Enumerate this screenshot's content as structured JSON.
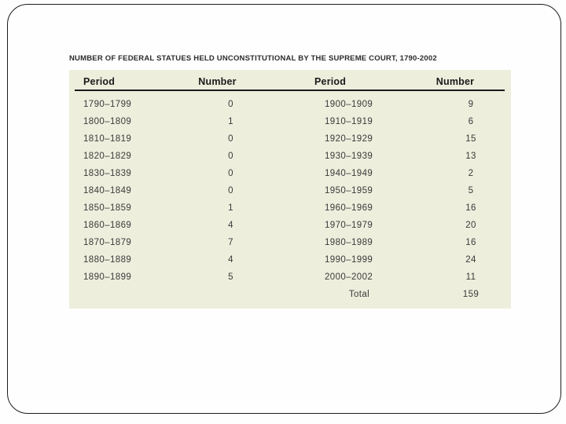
{
  "slide": {
    "background_color": "#fefefe",
    "border_color": "#1c1c1c"
  },
  "table": {
    "title": "NUMBER OF FEDERAL STATUES HELD UNCONSTITUTIONAL BY THE SUPREME COURT, 1790-2002",
    "background_color": "#eeeedd",
    "headers": [
      "Period",
      "Number",
      "Period",
      "Number"
    ],
    "rows": [
      [
        "1790–1799",
        "0",
        "1900–1909",
        "9"
      ],
      [
        "1800–1809",
        "1",
        "1910–1919",
        "6"
      ],
      [
        "1810–1819",
        "0",
        "1920–1929",
        "15"
      ],
      [
        "1820–1829",
        "0",
        "1930–1939",
        "13"
      ],
      [
        "1830–1839",
        "0",
        "1940–1949",
        "2"
      ],
      [
        "1840–1849",
        "0",
        "1950–1959",
        "5"
      ],
      [
        "1850–1859",
        "1",
        "1960–1969",
        "16"
      ],
      [
        "1860–1869",
        "4",
        "1970–1979",
        "20"
      ],
      [
        "1870–1879",
        "7",
        "1980–1989",
        "16"
      ],
      [
        "1880–1889",
        "4",
        "1990–1999",
        "24"
      ],
      [
        "1890–1899",
        "5",
        "2000–2002",
        "11"
      ]
    ],
    "total_row": {
      "label": "Total",
      "value": "159"
    }
  },
  "chart_data": {
    "type": "table",
    "title": "NUMBER OF FEDERAL STATUES HELD UNCONSTITUTIONAL BY THE SUPREME COURT, 1790-2002",
    "columns": [
      "Period",
      "Number",
      "Period",
      "Number"
    ],
    "periods": [
      "1790–1799",
      "1800–1809",
      "1810–1819",
      "1820–1829",
      "1830–1839",
      "1840–1849",
      "1850–1859",
      "1860–1869",
      "1870–1879",
      "1880–1889",
      "1890–1899",
      "1900–1909",
      "1910–1919",
      "1920–1929",
      "1930–1939",
      "1940–1949",
      "1950–1959",
      "1960–1969",
      "1970–1979",
      "1980–1989",
      "1990–1999",
      "2000–2002"
    ],
    "values": [
      0,
      1,
      0,
      0,
      0,
      0,
      1,
      4,
      7,
      4,
      5,
      9,
      6,
      15,
      13,
      2,
      5,
      16,
      20,
      16,
      24,
      11
    ],
    "total": 159
  }
}
